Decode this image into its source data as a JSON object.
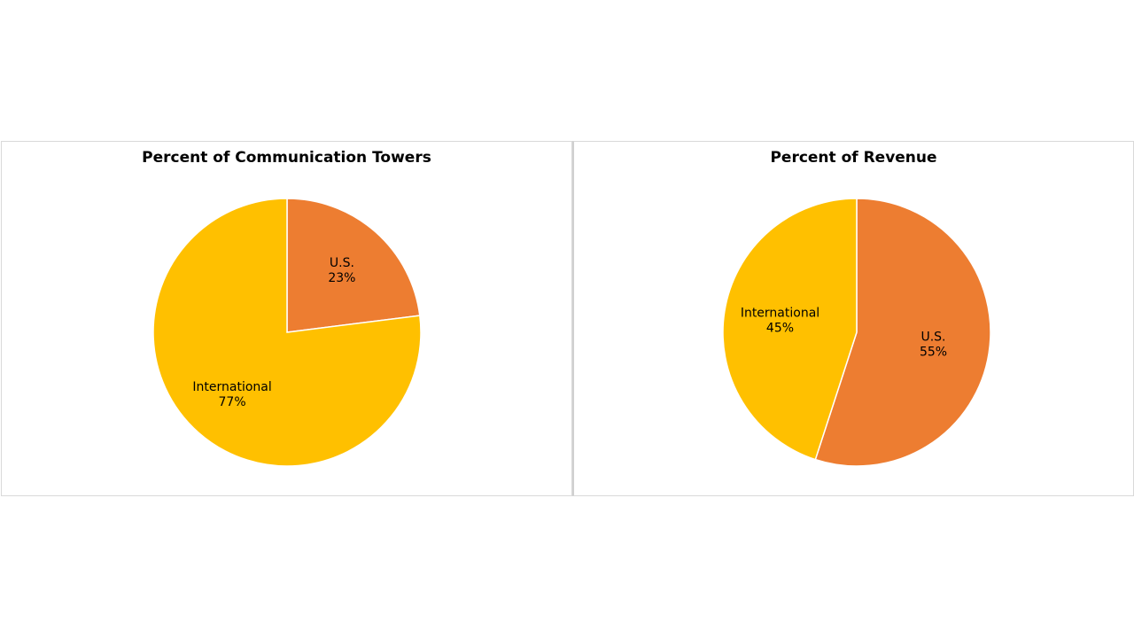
{
  "chart_data": [
    {
      "type": "pie",
      "title": "Percent of Communication Towers",
      "slices": [
        {
          "label": "U.S.",
          "value": 23,
          "value_label": "23%",
          "color": "#ED7D31"
        },
        {
          "label": "International",
          "value": 77,
          "value_label": "77%",
          "color": "#FFC000"
        }
      ],
      "start_angle_deg": 0,
      "direction": "clockwise",
      "slice_border_color": "#ffffff",
      "legend": "none"
    },
    {
      "type": "pie",
      "title": "Percent of Revenue",
      "slices": [
        {
          "label": "U.S.",
          "value": 55,
          "value_label": "55%",
          "color": "#ED7D31"
        },
        {
          "label": "International",
          "value": 45,
          "value_label": "45%",
          "color": "#FFC000"
        }
      ],
      "start_angle_deg": 0,
      "direction": "clockwise",
      "slice_border_color": "#ffffff",
      "legend": "none"
    }
  ]
}
